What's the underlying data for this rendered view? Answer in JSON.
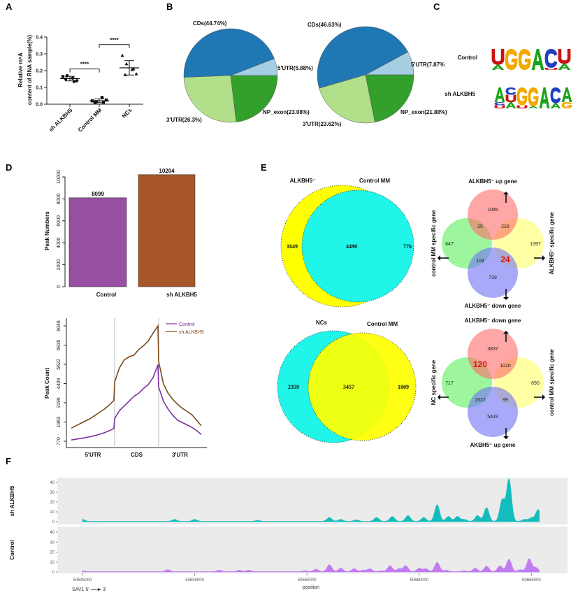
{
  "panel_labels": [
    "A",
    "B",
    "C",
    "D",
    "E",
    "F"
  ],
  "chart_data": [
    {
      "type": "scatter",
      "ylabel_lines": [
        "Relative m⁶A",
        "content of RNA sample(%)"
      ],
      "categories": [
        "sh ALKBH5",
        "Control MM",
        "NCs"
      ],
      "values": [
        [
          0.165,
          0.17,
          0.155,
          0.14,
          0.15,
          0.135
        ],
        [
          0.02,
          0.015,
          0.04,
          0.025,
          0.01,
          0.012
        ],
        [
          0.29,
          0.24,
          0.205,
          0.18,
          0.175,
          0.21
        ]
      ],
      "ylim": [
        0,
        0.4
      ],
      "yticks": [
        "0.0",
        "0.1",
        "0.2",
        "0.3",
        "0.4"
      ],
      "significance": [
        {
          "pair": [
            0,
            1
          ],
          "y": 0.21,
          "label": "****"
        },
        {
          "pair": [
            1,
            2
          ],
          "y": 0.355,
          "label": "****"
        }
      ]
    },
    {
      "type": "pie",
      "slices": [
        {
          "name": "5'UTR",
          "value": 5.88,
          "label": "5'UTR(5.88%)",
          "color": "#a6cee3"
        },
        {
          "name": "CDs",
          "value": 44.74,
          "label": "CDs(44.74%)",
          "color": "#1f78b4"
        },
        {
          "name": "3'UTR",
          "value": 26.3,
          "label": "3'UTR(26.3%)",
          "color": "#b2df8a"
        },
        {
          "name": "NP_exon",
          "value": 23.08,
          "label": "NP_exon(23.08%)",
          "color": "#33a02c"
        }
      ]
    },
    {
      "type": "pie",
      "slices": [
        {
          "name": "5'UTR",
          "value": 7.87,
          "label": "5'UTR(7.87%",
          "color": "#a6cee3"
        },
        {
          "name": "CDs",
          "value": 46.63,
          "label": "CDs(46.63%)",
          "color": "#1f78b4"
        },
        {
          "name": "3'UTR",
          "value": 23.62,
          "label": "3'UTR(23.62%)",
          "color": "#b2df8a"
        },
        {
          "name": "NP_exon",
          "value": 21.88,
          "label": "NP_exon(21.88%)",
          "color": "#33a02c"
        }
      ]
    },
    {
      "type": "sequence-logo",
      "colors": {
        "A": "#1aa31a",
        "C": "#1f3fbf",
        "G": "#f2a900",
        "U": "#cc1111"
      },
      "logos": [
        {
          "name": "Control",
          "positions": [
            [
              [
                "U",
                0.75
              ],
              [
                "A",
                0.25
              ]
            ],
            [
              [
                "G",
                1
              ]
            ],
            [
              [
                "G",
                1
              ]
            ],
            [
              [
                "A",
                1
              ]
            ],
            [
              [
                "C",
                0.9
              ],
              [
                "U",
                0.1
              ]
            ],
            [
              [
                "U",
                0.7
              ],
              [
                "A",
                0.3
              ]
            ]
          ]
        },
        {
          "name": "sh ALKBH5",
          "positions": [
            [
              [
                "A",
                0.7
              ],
              [
                "C",
                0.15
              ],
              [
                "U",
                0.15
              ]
            ],
            [
              [
                "C",
                0.35
              ],
              [
                "U",
                0.35
              ],
              [
                "A",
                0.3
              ]
            ],
            [
              [
                "G",
                0.85
              ],
              [
                "U",
                0.15
              ]
            ],
            [
              [
                "G",
                0.9
              ],
              [
                "A",
                0.1
              ]
            ],
            [
              [
                "A",
                1
              ]
            ],
            [
              [
                "C",
                0.75
              ],
              [
                "A",
                0.25
              ]
            ],
            [
              [
                "A",
                0.7
              ],
              [
                "G",
                0.3
              ]
            ]
          ]
        }
      ]
    },
    {
      "type": "bar",
      "ylabel": "Peak Numbers",
      "categories": [
        "Control",
        "sh ALKBH5"
      ],
      "values": [
        8099,
        10204
      ],
      "value_labels": [
        "8099",
        "10204"
      ],
      "colors": [
        "#984ea3",
        "#a65628"
      ],
      "ylim": [
        0,
        10000
      ],
      "yticks": [
        "0",
        "2000",
        "4000",
        "6000",
        "8000",
        "10000"
      ]
    },
    {
      "type": "line",
      "ylabel": "Peak Count",
      "regions": [
        "5'UTR",
        "CDS",
        "3'UTR"
      ],
      "yticks": [
        "770",
        "1983",
        "3196",
        "4409",
        "5622",
        "6835",
        "8048"
      ],
      "ylim": [
        770,
        8048
      ],
      "legend_position": "top-right",
      "series": [
        {
          "name": "Control",
          "color": "#7d2fa0",
          "values": [
            850,
            900,
            950,
            1000,
            1060,
            1130,
            1210,
            1310,
            1430,
            1580,
            2200,
            2700,
            3000,
            3300,
            3600,
            3800,
            4100,
            4350,
            4800,
            5600,
            4200,
            3300,
            2800,
            2400,
            2100,
            1950,
            1800,
            1650,
            1450,
            1200
          ]
        },
        {
          "name": "sh ALKBH5",
          "color": "#7a4a1c",
          "values": [
            1600,
            1750,
            1900,
            2050,
            2200,
            2400,
            2600,
            2800,
            3050,
            3350,
            4500,
            5400,
            5900,
            6100,
            6200,
            6550,
            6800,
            7100,
            7600,
            8048,
            5800,
            4400,
            3800,
            3400,
            3100,
            2850,
            2650,
            2450,
            2100,
            1750
          ]
        }
      ]
    },
    {
      "type": "venn",
      "sets": [
        {
          "name": "ALKBH5⁻",
          "color": "#ffff00"
        },
        {
          "name": "Control MM",
          "color": "#1ff5e8"
        }
      ],
      "counts": {
        "only_first": "1649",
        "both": "4490",
        "only_second": "776"
      }
    },
    {
      "type": "venn",
      "sets": [
        {
          "name": "NCs",
          "color": "#1ff5e8"
        },
        {
          "name": "Control MM",
          "color": "#ffff00"
        }
      ],
      "counts": {
        "only_first": "2359",
        "both": "3457",
        "only_second": "1809"
      }
    },
    {
      "type": "venn4",
      "sets": {
        "top": "ALKBH5⁻ up gene",
        "left": "control MM specific gene",
        "right": "ALKBH5⁻ specific gene",
        "bottom": "ALKBH5⁻ down gene"
      },
      "counts": {
        "top": "1085",
        "top_left": "25",
        "top_right": "228",
        "left": "647",
        "right": "1397",
        "bottom_left": "104",
        "bottom_right": "24",
        "bottom": "739"
      },
      "highlight": "bottom_right"
    },
    {
      "type": "venn4",
      "sets": {
        "top": "ALKBH5⁻ down gene",
        "left": "NC specific gene",
        "right": "control MM specific gene",
        "bottom": "AKBH5⁻ up gene"
      },
      "counts": {
        "top": "3837",
        "top_left": "120",
        "top_right": "1020",
        "left": "717",
        "right": "690",
        "bottom_left": "1522",
        "bottom_right": "99",
        "bottom": "5433"
      },
      "highlight": "top_left"
    },
    {
      "type": "area",
      "xlabel": "position",
      "xticks": [
        "50645000",
        "50650000",
        "50655000",
        "50660000",
        "50665000"
      ],
      "yticks": [
        "0",
        "10",
        "20",
        "30",
        "40"
      ],
      "ylim": [
        0,
        44
      ],
      "gene_label": "SAV1 5'",
      "gene_end": "3'",
      "tracks": [
        {
          "name": "sh ALKBH5",
          "color": "#14bdbd",
          "peaks": [
            [
              50645000,
              2
            ],
            [
              50649100,
              2
            ],
            [
              50650000,
              2
            ],
            [
              50652800,
              1
            ],
            [
              50656000,
              4
            ],
            [
              50656500,
              2
            ],
            [
              50657200,
              1.5
            ],
            [
              50658100,
              4
            ],
            [
              50658800,
              5
            ],
            [
              50659500,
              6
            ],
            [
              50660200,
              4
            ],
            [
              50660800,
              17
            ],
            [
              50661300,
              5
            ],
            [
              50661700,
              5
            ],
            [
              50662000,
              2
            ],
            [
              50662600,
              6
            ],
            [
              50663000,
              14
            ],
            [
              50663700,
              22
            ],
            [
              50664000,
              43
            ],
            [
              50664700,
              2
            ],
            [
              50665000,
              3.5
            ],
            [
              50665300,
              12
            ]
          ]
        },
        {
          "name": "Control",
          "color": "#c27cf2",
          "peaks": [
            [
              50645000,
              1
            ],
            [
              50648800,
              2
            ],
            [
              50651100,
              1.5
            ],
            [
              50652000,
              1.5
            ],
            [
              50652400,
              1.5
            ],
            [
              50654900,
              1
            ],
            [
              50655400,
              2.5
            ],
            [
              50656000,
              7
            ],
            [
              50656500,
              3.5
            ],
            [
              50657100,
              3
            ],
            [
              50657500,
              1.5
            ],
            [
              50657800,
              3
            ],
            [
              50658300,
              1
            ],
            [
              50658700,
              6
            ],
            [
              50659100,
              3
            ],
            [
              50659400,
              6
            ],
            [
              50660000,
              3.5
            ],
            [
              50660300,
              3
            ],
            [
              50660800,
              9.5
            ],
            [
              50661200,
              1.5
            ],
            [
              50662000,
              1
            ],
            [
              50662500,
              3.5
            ],
            [
              50663000,
              5.5
            ],
            [
              50663600,
              6
            ],
            [
              50664000,
              12.5
            ],
            [
              50664500,
              2
            ],
            [
              50664900,
              13
            ],
            [
              50665200,
              4
            ]
          ]
        }
      ]
    }
  ]
}
